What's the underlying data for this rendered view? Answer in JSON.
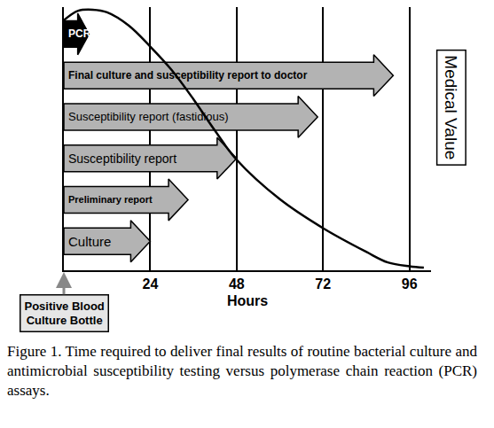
{
  "chart_data": {
    "type": "bar",
    "orientation": "horizontal",
    "marker": "arrow",
    "caption": "Figure 1. Time required to deliver final results of routine bacterial culture and antimicrobial susceptibility testing versus polymerase chain reaction (PCR) assays.",
    "x_label": "Hours",
    "annotations": [
      "Positive Blood Culture Bottle"
    ],
    "categories": [
      "Culture",
      "Preliminary report",
      "Susceptibility report",
      "Susceptibility report (fastidious)",
      "Final culture and susceptibility report to doctor",
      "PCR"
    ],
    "values": [
      24,
      34.5,
      48,
      70.5,
      91.5,
      7
    ],
    "colors": [
      "#b3b3b3",
      "#b3b3b3",
      "#b3b3b3",
      "#b3b3b3",
      "#b3b3b3",
      "#000000"
    ],
    "xlim": [
      0,
      102
    ],
    "xticks": [
      24,
      48,
      72,
      96
    ],
    "grid": true,
    "tick_labels": "x",
    "y2lim": [
      0,
      100
    ],
    "series": [
      {
        "name": "Medical Value",
        "type": "line",
        "axis": "y2",
        "color": "#000000",
        "line_style": "solid",
        "x": [
          0,
          4,
          8,
          12,
          18,
          24,
          30,
          36,
          42,
          48,
          60,
          72,
          84,
          90,
          96,
          100
        ],
        "values": [
          95,
          98.6,
          99,
          98,
          93,
          85,
          76,
          65,
          53,
          42,
          27,
          16,
          7,
          3,
          1.5,
          1
        ]
      }
    ]
  }
}
